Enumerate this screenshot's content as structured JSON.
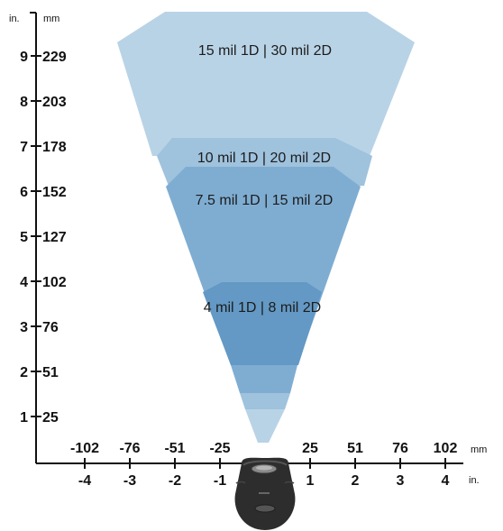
{
  "colors": {
    "zone_15_30": "#b9d3e6",
    "zone_10_20": "#9fc2dd",
    "zone_7_15": "#7fadd2",
    "zone_4_8": "#6399c4",
    "axis": "#111111",
    "scanner_body": "#2d2d2d"
  },
  "vertical_axis": {
    "unit_in": "in.",
    "unit_mm": "mm",
    "ticks": [
      {
        "in": "9",
        "mm": "229"
      },
      {
        "in": "8",
        "mm": "203"
      },
      {
        "in": "7",
        "mm": "178"
      },
      {
        "in": "6",
        "mm": "152"
      },
      {
        "in": "5",
        "mm": "127"
      },
      {
        "in": "4",
        "mm": "102"
      },
      {
        "in": "3",
        "mm": "76"
      },
      {
        "in": "2",
        "mm": "51"
      },
      {
        "in": "1",
        "mm": "25"
      }
    ]
  },
  "horizontal_axis": {
    "unit_mm": "mm",
    "unit_in": "in.",
    "ticks": [
      {
        "in": "-4",
        "mm": "-102"
      },
      {
        "in": "-3",
        "mm": "-76"
      },
      {
        "in": "-2",
        "mm": "-51"
      },
      {
        "in": "-1",
        "mm": "-25"
      },
      {
        "in": "1",
        "mm": "25"
      },
      {
        "in": "2",
        "mm": "51"
      },
      {
        "in": "3",
        "mm": "76"
      },
      {
        "in": "4",
        "mm": "102"
      }
    ]
  },
  "zones": [
    {
      "key": "zone_15_30",
      "label": "15 mil 1D | 30 mil 2D"
    },
    {
      "key": "zone_10_20",
      "label": "10 mil 1D | 20 mil 2D"
    },
    {
      "key": "zone_7_15",
      "label": "7.5 mil 1D | 15 mil 2D"
    },
    {
      "key": "zone_4_8",
      "label": "4 mil 1D | 8 mil 2D"
    }
  ],
  "scanner": {
    "icon": "barcode-scanner-icon"
  }
}
